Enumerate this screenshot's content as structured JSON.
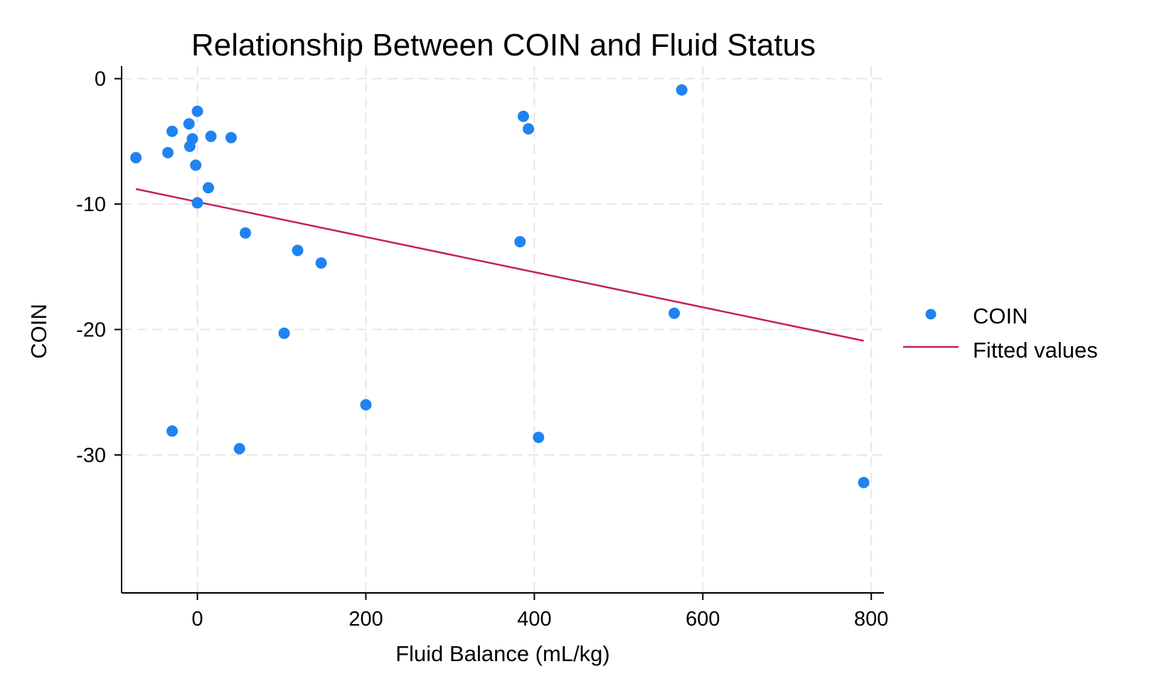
{
  "chart_data": {
    "type": "scatter",
    "title": "Relationship Between COIN and Fluid Status",
    "xlabel": "Fluid Balance (mL/kg)",
    "ylabel": "COIN",
    "xlim": [
      -90,
      815
    ],
    "ylim": [
      -41,
      1
    ],
    "xticks": [
      0,
      200,
      400,
      600,
      800
    ],
    "yticks": [
      0,
      -10,
      -20,
      -30
    ],
    "grid": true,
    "legend_position": "right",
    "series": [
      {
        "name": "COIN",
        "kind": "scatter",
        "color": "#1f83f2",
        "points": [
          {
            "x": -73,
            "y": -6.3
          },
          {
            "x": -35,
            "y": -5.9
          },
          {
            "x": -30,
            "y": -4.2
          },
          {
            "x": -30,
            "y": -28.1
          },
          {
            "x": -10,
            "y": -3.6
          },
          {
            "x": -9,
            "y": -5.4
          },
          {
            "x": -6,
            "y": -4.8
          },
          {
            "x": -2,
            "y": -6.9
          },
          {
            "x": 0,
            "y": -2.6
          },
          {
            "x": 0,
            "y": -9.9
          },
          {
            "x": 13,
            "y": -8.7
          },
          {
            "x": 16,
            "y": -4.6
          },
          {
            "x": 40,
            "y": -4.7
          },
          {
            "x": 50,
            "y": -29.5
          },
          {
            "x": 57,
            "y": -12.3
          },
          {
            "x": 103,
            "y": -20.3
          },
          {
            "x": 119,
            "y": -13.7
          },
          {
            "x": 147,
            "y": -14.7
          },
          {
            "x": 200,
            "y": -26.0
          },
          {
            "x": 383,
            "y": -13.0
          },
          {
            "x": 387,
            "y": -3.0
          },
          {
            "x": 393,
            "y": -4.0
          },
          {
            "x": 405,
            "y": -28.6
          },
          {
            "x": 566,
            "y": -18.7
          },
          {
            "x": 575,
            "y": -0.9
          },
          {
            "x": 791,
            "y": -32.2
          }
        ]
      },
      {
        "name": "Fitted values",
        "kind": "line",
        "color": "#c4205a",
        "points": [
          {
            "x": -73,
            "y": -8.8
          },
          {
            "x": 791,
            "y": -20.9
          }
        ]
      }
    ]
  }
}
